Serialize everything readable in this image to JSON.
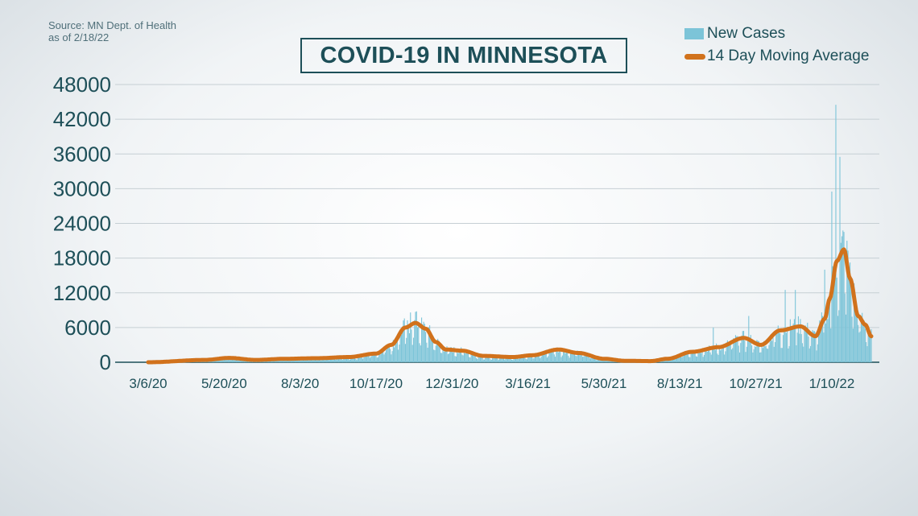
{
  "source": {
    "line1": "Source: MN Dept. of Health",
    "line2": "as of 2/18/22"
  },
  "colors": {
    "bars": "#7cc4d8",
    "line": "#d1721c",
    "text": "#1d4f58",
    "grid": "#c6cfd4"
  },
  "chart_data": {
    "type": "bar",
    "title": "COVID-19 IN MINNESOTA",
    "xlabel": "",
    "ylabel": "",
    "ylim": [
      0,
      48000
    ],
    "yticks": [
      "48000",
      "42000",
      "36000",
      "30000",
      "24000",
      "18000",
      "12000",
      "6000",
      "0"
    ],
    "xticks": [
      "3/6/20",
      "5/20/20",
      "8/3/20",
      "10/17/20",
      "12/31/20",
      "3/16/21",
      "5/30/21",
      "8/13/21",
      "10/27/21",
      "1/10/22"
    ],
    "grid": true,
    "legend": "top-right",
    "series": [
      {
        "name": "New Cases",
        "type": "bar"
      },
      {
        "name": "14 Day Moving Average",
        "type": "line"
      }
    ],
    "moving_average_points": [
      [
        "3/6/20",
        0
      ],
      [
        "5/1/20",
        400
      ],
      [
        "5/25/20",
        750
      ],
      [
        "6/20/20",
        400
      ],
      [
        "7/20/20",
        600
      ],
      [
        "8/20/20",
        700
      ],
      [
        "9/20/20",
        900
      ],
      [
        "10/17/20",
        1500
      ],
      [
        "11/1/20",
        3000
      ],
      [
        "11/15/20",
        6000
      ],
      [
        "11/25/20",
        6800
      ],
      [
        "12/5/20",
        5800
      ],
      [
        "12/15/20",
        3500
      ],
      [
        "12/25/20",
        2200
      ],
      [
        "1/10/21",
        2000
      ],
      [
        "1/31/21",
        1100
      ],
      [
        "3/1/21",
        900
      ],
      [
        "3/20/21",
        1200
      ],
      [
        "4/15/21",
        2200
      ],
      [
        "5/5/21",
        1600
      ],
      [
        "5/30/21",
        600
      ],
      [
        "6/20/21",
        250
      ],
      [
        "7/15/21",
        200
      ],
      [
        "8/1/21",
        600
      ],
      [
        "8/25/21",
        1800
      ],
      [
        "9/20/21",
        2600
      ],
      [
        "10/15/21",
        4200
      ],
      [
        "11/1/21",
        3000
      ],
      [
        "11/20/21",
        5500
      ],
      [
        "12/10/21",
        6200
      ],
      [
        "12/25/21",
        4500
      ],
      [
        "1/3/22",
        7500
      ],
      [
        "1/8/22",
        11000
      ],
      [
        "1/15/22",
        17500
      ],
      [
        "1/22/22",
        19500
      ],
      [
        "1/28/22",
        14500
      ],
      [
        "2/5/22",
        8000
      ],
      [
        "2/12/22",
        6500
      ],
      [
        "2/18/22",
        4500
      ]
    ],
    "notable_daily_values": [
      [
        "11/20/20",
        8600
      ],
      [
        "11/26/20",
        8800
      ],
      [
        "9/15/21",
        6000
      ],
      [
        "10/20/21",
        8000
      ],
      [
        "11/25/21",
        12500
      ],
      [
        "12/5/21",
        12500
      ],
      [
        "1/3/22",
        16000
      ],
      [
        "1/10/22",
        29500
      ],
      [
        "1/14/22",
        44500
      ],
      [
        "1/18/22",
        35500
      ],
      [
        "1/25/22",
        21000
      ]
    ]
  }
}
